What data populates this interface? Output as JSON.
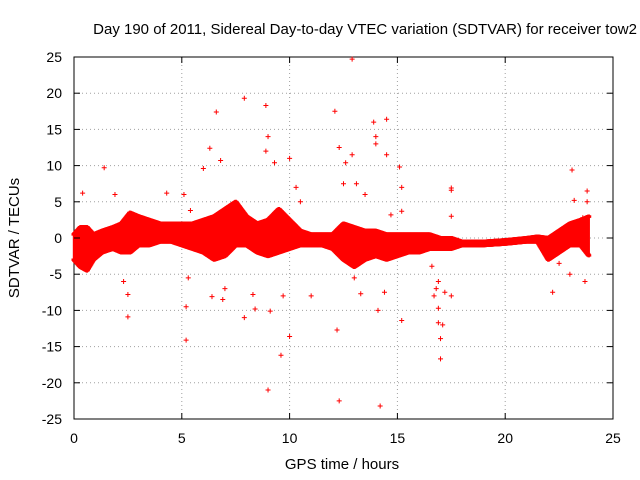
{
  "chart_data": {
    "type": "scatter",
    "title": "Day 190 of 2011, Sidereal Day-to-day VTEC variation (SDTVAR) for receiver tow2",
    "xlabel": "GPS time / hours",
    "ylabel": "SDTVAR / TECUs",
    "xlim": [
      0,
      25
    ],
    "ylim": [
      -25,
      25
    ],
    "xticks": [
      "0",
      "5",
      "10",
      "15",
      "20",
      "25"
    ],
    "yticks": [
      "25",
      "20",
      "15",
      "10",
      "5",
      "0",
      "-5",
      "-10",
      "-15",
      "-20",
      "-25"
    ],
    "grid": true,
    "marker": "+",
    "series_color": "#ff0000",
    "dense_band": [
      {
        "x": 0.0,
        "lo": -3.0,
        "hi": 0.5
      },
      {
        "x": 0.3,
        "lo": -4.0,
        "hi": 1.5
      },
      {
        "x": 0.6,
        "lo": -4.5,
        "hi": 1.5
      },
      {
        "x": 0.9,
        "lo": -3.0,
        "hi": 0.5
      },
      {
        "x": 1.3,
        "lo": -2.0,
        "hi": 1.0
      },
      {
        "x": 1.8,
        "lo": -1.5,
        "hi": 1.5
      },
      {
        "x": 2.2,
        "lo": -2.0,
        "hi": 2.0
      },
      {
        "x": 2.6,
        "lo": -2.0,
        "hi": 3.5
      },
      {
        "x": 3.0,
        "lo": -1.0,
        "hi": 3.0
      },
      {
        "x": 3.5,
        "lo": -1.0,
        "hi": 2.5
      },
      {
        "x": 4.0,
        "lo": -0.5,
        "hi": 2.0
      },
      {
        "x": 4.5,
        "lo": -0.5,
        "hi": 2.0
      },
      {
        "x": 5.0,
        "lo": -1.0,
        "hi": 2.0
      },
      {
        "x": 5.5,
        "lo": -1.5,
        "hi": 2.0
      },
      {
        "x": 6.0,
        "lo": -2.0,
        "hi": 2.5
      },
      {
        "x": 6.5,
        "lo": -3.0,
        "hi": 3.0
      },
      {
        "x": 7.0,
        "lo": -2.5,
        "hi": 4.0
      },
      {
        "x": 7.5,
        "lo": -1.0,
        "hi": 5.0
      },
      {
        "x": 8.0,
        "lo": -1.0,
        "hi": 3.0
      },
      {
        "x": 8.5,
        "lo": -2.0,
        "hi": 2.0
      },
      {
        "x": 9.0,
        "lo": -2.5,
        "hi": 2.5
      },
      {
        "x": 9.5,
        "lo": -2.0,
        "hi": 4.0
      },
      {
        "x": 10.0,
        "lo": -1.5,
        "hi": 2.5
      },
      {
        "x": 10.5,
        "lo": -1.0,
        "hi": 1.0
      },
      {
        "x": 11.0,
        "lo": -1.0,
        "hi": 0.5
      },
      {
        "x": 11.5,
        "lo": -1.0,
        "hi": 0.5
      },
      {
        "x": 12.0,
        "lo": -1.5,
        "hi": 0.5
      },
      {
        "x": 12.5,
        "lo": -3.0,
        "hi": 2.0
      },
      {
        "x": 13.0,
        "lo": -4.0,
        "hi": 1.5
      },
      {
        "x": 13.5,
        "lo": -3.0,
        "hi": 1.0
      },
      {
        "x": 14.0,
        "lo": -2.5,
        "hi": 1.0
      },
      {
        "x": 14.5,
        "lo": -3.0,
        "hi": 0.5
      },
      {
        "x": 15.0,
        "lo": -2.5,
        "hi": 0.5
      },
      {
        "x": 15.5,
        "lo": -2.0,
        "hi": 0.5
      },
      {
        "x": 16.0,
        "lo": -2.0,
        "hi": 0.5
      },
      {
        "x": 16.5,
        "lo": -1.5,
        "hi": 0.5
      },
      {
        "x": 17.0,
        "lo": -1.5,
        "hi": 0.0
      },
      {
        "x": 17.5,
        "lo": -1.5,
        "hi": 0.0
      },
      {
        "x": 18.0,
        "lo": -1.0,
        "hi": -0.5
      },
      {
        "x": 19.0,
        "lo": -1.0,
        "hi": -0.5
      },
      {
        "x": 20.0,
        "lo": -0.8,
        "hi": -0.3
      },
      {
        "x": 21.0,
        "lo": -0.5,
        "hi": 0.0
      },
      {
        "x": 21.5,
        "lo": -0.5,
        "hi": 0.2
      },
      {
        "x": 22.0,
        "lo": -3.0,
        "hi": 0.0
      },
      {
        "x": 22.5,
        "lo": -2.0,
        "hi": 1.0
      },
      {
        "x": 23.0,
        "lo": -1.0,
        "hi": 2.0
      },
      {
        "x": 23.5,
        "lo": -1.0,
        "hi": 2.5
      },
      {
        "x": 23.9,
        "lo": -2.5,
        "hi": 3.0
      }
    ],
    "points": [
      [
        0.4,
        6.2
      ],
      [
        1.4,
        9.7
      ],
      [
        1.9,
        6.0
      ],
      [
        2.5,
        -10.9
      ],
      [
        2.5,
        -7.8
      ],
      [
        2.3,
        -6.0
      ],
      [
        4.3,
        6.2
      ],
      [
        5.2,
        -14.1
      ],
      [
        5.2,
        -9.5
      ],
      [
        5.3,
        -5.5
      ],
      [
        5.4,
        3.8
      ],
      [
        5.1,
        6.0
      ],
      [
        6.0,
        9.6
      ],
      [
        6.3,
        12.4
      ],
      [
        6.4,
        -8.1
      ],
      [
        6.6,
        17.4
      ],
      [
        6.8,
        10.7
      ],
      [
        6.9,
        -8.5
      ],
      [
        7.0,
        -7.0
      ],
      [
        7.9,
        19.3
      ],
      [
        7.9,
        -11.0
      ],
      [
        8.3,
        -7.8
      ],
      [
        8.4,
        -9.8
      ],
      [
        8.9,
        18.3
      ],
      [
        8.9,
        12.0
      ],
      [
        9.0,
        14.0
      ],
      [
        9.1,
        -10.1
      ],
      [
        9.0,
        -21.0
      ],
      [
        9.3,
        10.4
      ],
      [
        9.6,
        -16.2
      ],
      [
        9.7,
        -8.0
      ],
      [
        10.0,
        -13.6
      ],
      [
        10.0,
        11.0
      ],
      [
        10.3,
        7.0
      ],
      [
        10.5,
        5.0
      ],
      [
        11.0,
        -8.0
      ],
      [
        12.1,
        17.5
      ],
      [
        12.3,
        12.5
      ],
      [
        12.2,
        -12.7
      ],
      [
        12.3,
        -22.5
      ],
      [
        12.6,
        10.4
      ],
      [
        12.9,
        11.5
      ],
      [
        12.5,
        7.5
      ],
      [
        12.9,
        24.7
      ],
      [
        13.1,
        7.5
      ],
      [
        13.3,
        -7.7
      ],
      [
        13.0,
        -5.5
      ],
      [
        13.5,
        6.0
      ],
      [
        13.9,
        16.0
      ],
      [
        14.0,
        14.0
      ],
      [
        14.0,
        13.0
      ],
      [
        14.2,
        -23.2
      ],
      [
        14.1,
        -10.0
      ],
      [
        14.4,
        -7.5
      ],
      [
        14.5,
        16.4
      ],
      [
        14.5,
        11.5
      ],
      [
        14.7,
        3.2
      ],
      [
        15.1,
        9.8
      ],
      [
        15.2,
        7.0
      ],
      [
        15.2,
        3.7
      ],
      [
        15.2,
        -11.4
      ],
      [
        16.6,
        -3.9
      ],
      [
        16.7,
        -8.0
      ],
      [
        16.8,
        -7.0
      ],
      [
        16.9,
        -9.7
      ],
      [
        16.9,
        -6.0
      ],
      [
        16.9,
        -11.7
      ],
      [
        17.0,
        -13.9
      ],
      [
        17.0,
        -16.7
      ],
      [
        17.1,
        -12.0
      ],
      [
        17.5,
        6.6
      ],
      [
        17.5,
        6.9
      ],
      [
        17.5,
        -8.0
      ],
      [
        17.5,
        3.0
      ],
      [
        17.2,
        -7.5
      ],
      [
        22.2,
        -7.5
      ],
      [
        22.5,
        -3.5
      ],
      [
        23.0,
        -5.0
      ],
      [
        23.1,
        9.4
      ],
      [
        23.2,
        5.2
      ],
      [
        23.7,
        -6.0
      ],
      [
        23.6,
        2.8
      ],
      [
        23.8,
        6.5
      ],
      [
        23.8,
        5.0
      ]
    ]
  }
}
